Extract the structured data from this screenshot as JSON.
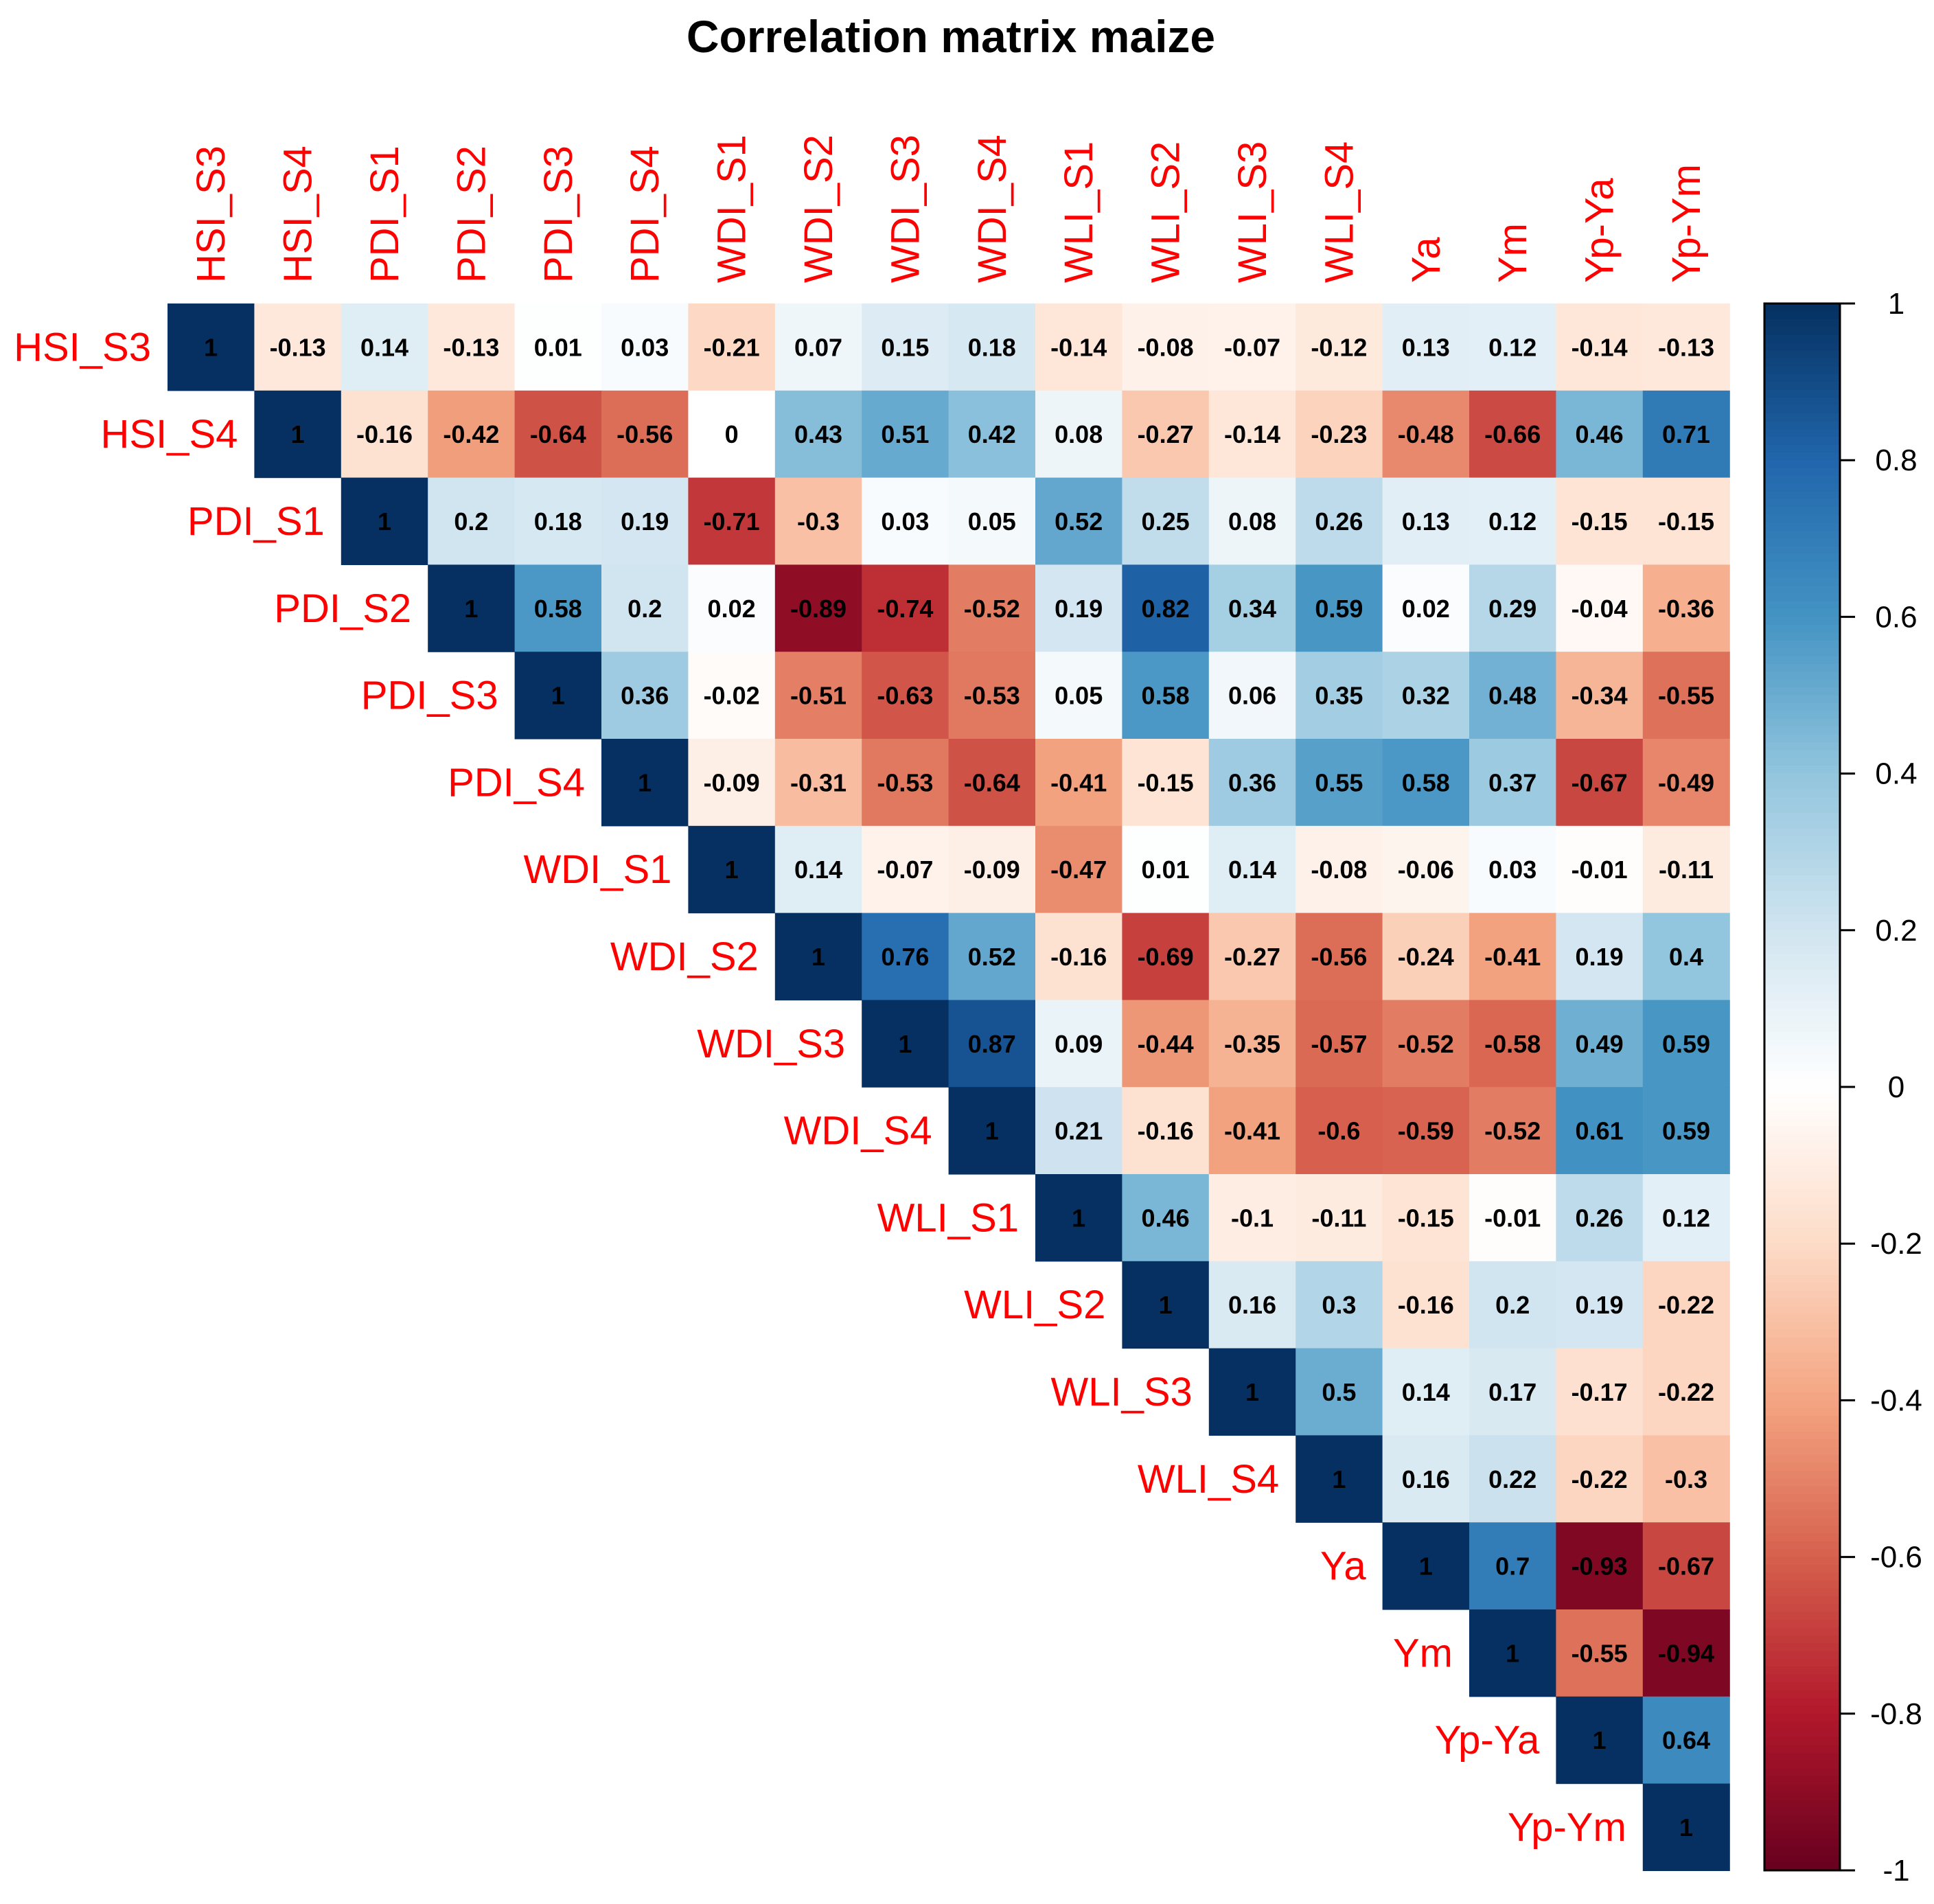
{
  "chart_data": {
    "type": "heatmap",
    "title": "Correlation matrix maize",
    "variables": [
      "HSI_S3",
      "HSI_S4",
      "PDI_S1",
      "PDI_S2",
      "PDI_S3",
      "PDI_S4",
      "WDI_S1",
      "WDI_S2",
      "WDI_S3",
      "WDI_S4",
      "WLI_S1",
      "WLI_S2",
      "WLI_S3",
      "WLI_S4",
      "Ya",
      "Ym",
      "Yp-Ya",
      "Yp-Ym"
    ],
    "layout": "upper-triangle",
    "values": [
      [
        "1",
        "-0.13",
        "0.14",
        "-0.13",
        "0.01",
        "0.03",
        "-0.21",
        "0.07",
        "0.15",
        "0.18",
        "-0.14",
        "-0.08",
        "-0.07",
        "-0.12",
        "0.13",
        "0.12",
        "-0.14",
        "-0.13"
      ],
      [
        "1",
        "-0.16",
        "-0.42",
        "-0.64",
        "-0.56",
        "0",
        "0.43",
        "0.51",
        "0.42",
        "0.08",
        "-0.27",
        "-0.14",
        "-0.23",
        "-0.48",
        "-0.66",
        "0.46",
        "0.71"
      ],
      [
        "1",
        "0.2",
        "0.18",
        "0.19",
        "-0.71",
        "-0.3",
        "0.03",
        "0.05",
        "0.52",
        "0.25",
        "0.08",
        "0.26",
        "0.13",
        "0.12",
        "-0.15",
        "-0.15"
      ],
      [
        "1",
        "0.58",
        "0.2",
        "0.02",
        "-0.89",
        "-0.74",
        "-0.52",
        "0.19",
        "0.82",
        "0.34",
        "0.59",
        "0.02",
        "0.29",
        "-0.04",
        "-0.36"
      ],
      [
        "1",
        "0.36",
        "-0.02",
        "-0.51",
        "-0.63",
        "-0.53",
        "0.05",
        "0.58",
        "0.06",
        "0.35",
        "0.32",
        "0.48",
        "-0.34",
        "-0.55"
      ],
      [
        "1",
        "-0.09",
        "-0.31",
        "-0.53",
        "-0.64",
        "-0.41",
        "-0.15",
        "0.36",
        "0.55",
        "0.58",
        "0.37",
        "-0.67",
        "-0.49"
      ],
      [
        "1",
        "0.14",
        "-0.07",
        "-0.09",
        "-0.47",
        "0.01",
        "0.14",
        "-0.08",
        "-0.06",
        "0.03",
        "-0.01",
        "-0.11"
      ],
      [
        "1",
        "0.76",
        "0.52",
        "-0.16",
        "-0.69",
        "-0.27",
        "-0.56",
        "-0.24",
        "-0.41",
        "0.19",
        "0.4"
      ],
      [
        "1",
        "0.87",
        "0.09",
        "-0.44",
        "-0.35",
        "-0.57",
        "-0.52",
        "-0.58",
        "0.49",
        "0.59"
      ],
      [
        "1",
        "0.21",
        "-0.16",
        "-0.41",
        "-0.6",
        "-0.59",
        "-0.52",
        "0.61",
        "0.59"
      ],
      [
        "1",
        "0.46",
        "-0.1",
        "-0.11",
        "-0.15",
        "-0.01",
        "0.26",
        "0.12"
      ],
      [
        "1",
        "0.16",
        "0.3",
        "-0.16",
        "0.2",
        "0.19",
        "-0.22"
      ],
      [
        "1",
        "0.5",
        "0.14",
        "0.17",
        "-0.17",
        "-0.22"
      ],
      [
        "1",
        "0.16",
        "0.22",
        "-0.22",
        "-0.3"
      ],
      [
        "1",
        "0.7",
        "-0.93",
        "-0.67"
      ],
      [
        "1",
        "-0.55",
        "-0.94"
      ],
      [
        "1",
        "0.64"
      ],
      [
        "1"
      ]
    ],
    "colorbar": {
      "range": [
        -1,
        1
      ],
      "ticks": [
        "1",
        "0.8",
        "0.6",
        "0.4",
        "0.2",
        "0",
        "-0.2",
        "-0.4",
        "-0.6",
        "-0.8",
        "-1"
      ]
    },
    "colors": {
      "label": "#ff0000",
      "scale": [
        "#67001f",
        "#b2182b",
        "#d6604d",
        "#f4a582",
        "#fddbc7",
        "#ffffff",
        "#d1e5f0",
        "#92c5de",
        "#4393c3",
        "#2166ac",
        "#053061"
      ]
    }
  }
}
